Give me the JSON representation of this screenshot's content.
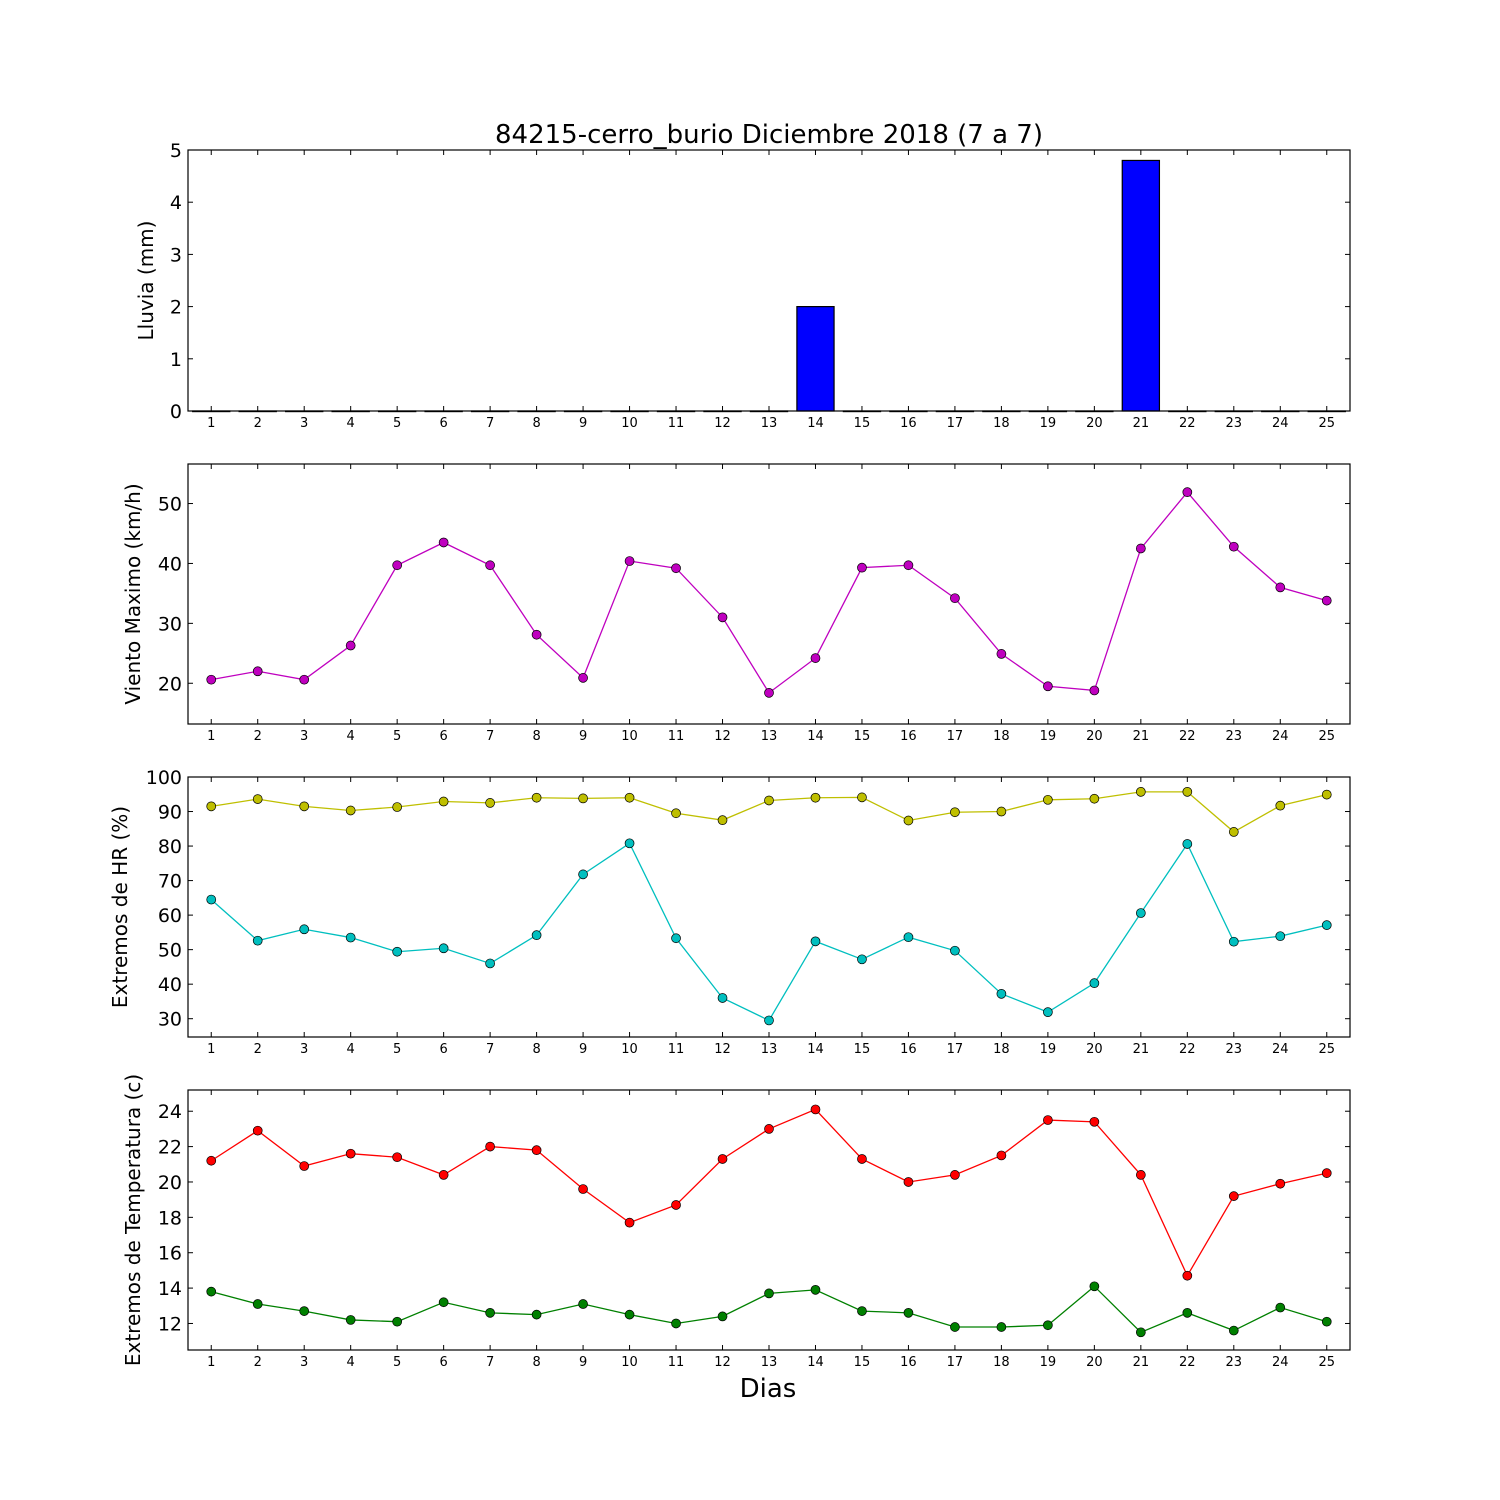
{
  "chart_data": {
    "title": "84215-cerro_burio Diciembre 2018  (7 a 7)",
    "xlabel": "Dias",
    "x": [
      1,
      2,
      3,
      4,
      5,
      6,
      7,
      8,
      9,
      10,
      11,
      12,
      13,
      14,
      15,
      16,
      17,
      18,
      19,
      20,
      21,
      22,
      23,
      24,
      25
    ],
    "panels": [
      {
        "type": "bar",
        "ylabel": "Lluvia (mm)",
        "ylim": [
          0,
          5
        ],
        "yticks": [
          0,
          1,
          2,
          3,
          4,
          5
        ],
        "series": [
          {
            "color": "#0000ff",
            "values": [
              0,
              0,
              0,
              0,
              0,
              0,
              0,
              0,
              0,
              0,
              0,
              0,
              0,
              2.0,
              0,
              0,
              0,
              0,
              0,
              0,
              4.8,
              0,
              0,
              0,
              0
            ]
          }
        ]
      },
      {
        "type": "line",
        "ylabel": "Viento Maximo (km/h)",
        "ylim": [
          13.2,
          56.6
        ],
        "yticks": [
          20,
          30,
          40,
          50
        ],
        "series": [
          {
            "color": "#bf00bf",
            "values": [
              20.6,
              22.0,
              20.6,
              26.3,
              39.7,
              43.5,
              39.7,
              28.1,
              20.9,
              40.4,
              39.2,
              31.0,
              18.4,
              24.2,
              39.3,
              39.7,
              34.2,
              24.9,
              19.5,
              18.8,
              42.5,
              51.9,
              42.8,
              36.0,
              33.8
            ]
          }
        ]
      },
      {
        "type": "line",
        "ylabel": "Extremos de HR (%)",
        "ylim": [
          24.7,
          100
        ],
        "yticks": [
          30,
          40,
          50,
          60,
          70,
          80,
          90,
          100
        ],
        "series": [
          {
            "color": "#bfbf00",
            "values": [
              91.5,
              93.6,
              91.5,
              90.3,
              91.3,
              92.9,
              92.5,
              94.0,
              93.8,
              94.0,
              89.5,
              87.5,
              93.2,
              94.0,
              94.1,
              87.4,
              89.8,
              90.0,
              93.4,
              93.7,
              95.7,
              95.7,
              84.1,
              91.7,
              94.9
            ]
          },
          {
            "color": "#00bfbf",
            "values": [
              64.5,
              52.6,
              55.9,
              53.5,
              49.4,
              50.4,
              46.0,
              54.2,
              71.8,
              80.8,
              53.3,
              36.0,
              29.5,
              52.4,
              47.2,
              53.6,
              49.7,
              37.2,
              31.9,
              40.3,
              60.6,
              80.6,
              52.3,
              53.9,
              57.1
            ]
          }
        ]
      },
      {
        "type": "line",
        "ylabel": "Extremos de Temperatura (c)",
        "ylim": [
          10.5,
          25.2
        ],
        "yticks": [
          12,
          14,
          16,
          18,
          20,
          22,
          24
        ],
        "series": [
          {
            "color": "#ff0000",
            "values": [
              21.2,
              22.9,
              20.9,
              21.6,
              21.4,
              20.4,
              22.0,
              21.8,
              19.6,
              17.7,
              18.7,
              21.3,
              23.0,
              24.1,
              21.3,
              20.0,
              20.4,
              21.5,
              23.5,
              23.4,
              20.4,
              14.7,
              19.2,
              19.9,
              20.5
            ]
          },
          {
            "color": "#008000",
            "values": [
              13.8,
              13.1,
              12.7,
              12.2,
              12.1,
              13.2,
              12.6,
              12.5,
              13.1,
              12.5,
              12.0,
              12.4,
              13.7,
              13.9,
              12.7,
              12.6,
              11.8,
              11.8,
              11.9,
              14.1,
              11.5,
              12.6,
              11.6,
              12.9,
              12.1
            ]
          }
        ]
      }
    ]
  }
}
